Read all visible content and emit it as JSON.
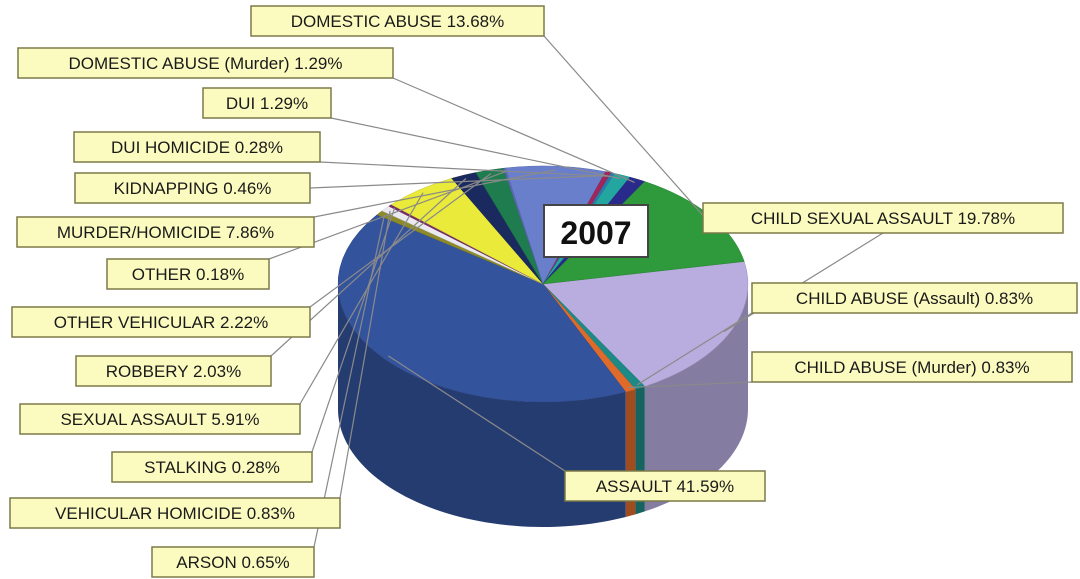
{
  "chart_data": {
    "type": "pie",
    "title": "2007",
    "slices": [
      {
        "label": "CHILD SEXUAL ASSAULT 19.78%",
        "value": 19.78,
        "color": "#b9acdf"
      },
      {
        "label": "CHILD ABUSE (Assault) 0.83%",
        "value": 0.83,
        "color": "#1e8a86"
      },
      {
        "label": "CHILD ABUSE (Murder) 0.83%",
        "value": 0.83,
        "color": "#e06a2a"
      },
      {
        "label": "ASSAULT 41.59%",
        "value": 41.59,
        "color": "#34539d"
      },
      {
        "label": "ARSON 0.65%",
        "value": 0.65,
        "color": "#8d8a2a"
      },
      {
        "label": "VEHICULAR HOMICIDE 0.83%",
        "value": 0.83,
        "color": "#e9e9ef"
      },
      {
        "label": "STALKING 0.28%",
        "value": 0.28,
        "color": "#7a2a6a"
      },
      {
        "label": "SEXUAL ASSAULT 5.91%",
        "value": 5.91,
        "color": "#eaea3a"
      },
      {
        "label": "ROBBERY 2.03%",
        "value": 2.03,
        "color": "#1b2a5e"
      },
      {
        "label": "OTHER VEHICULAR 2.22%",
        "value": 2.22,
        "color": "#1e7c4e"
      },
      {
        "label": "OTHER 0.18%",
        "value": 0.18,
        "color": "#5a6ab0"
      },
      {
        "label": "MURDER/HOMICIDE 7.86%",
        "value": 7.86,
        "color": "#6a7fcc"
      },
      {
        "label": "KIDNAPPING 0.46%",
        "value": 0.46,
        "color": "#a0265a"
      },
      {
        "label": "DUI HOMICIDE 0.28%",
        "value": 0.28,
        "color": "#2a7ab0"
      },
      {
        "label": "DUI 1.29%",
        "value": 1.29,
        "color": "#24a6a0"
      },
      {
        "label": "DOMESTIC ABUSE (Murder) 1.29%",
        "value": 1.29,
        "color": "#2a2a8c"
      },
      {
        "label": "DOMESTIC ABUSE 13.68%",
        "value": 13.68,
        "color": "#2f9a3c"
      }
    ]
  }
}
